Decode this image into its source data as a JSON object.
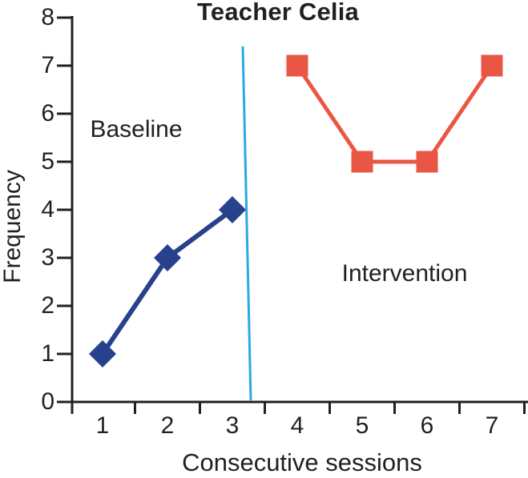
{
  "chart_data": {
    "type": "line",
    "title": "Teacher Celia",
    "xlabel": "Consecutive sessions",
    "ylabel": "Frequency",
    "x_ticks": [
      1,
      2,
      3,
      4,
      5,
      6,
      7
    ],
    "y_ticks": [
      0,
      1,
      2,
      3,
      4,
      5,
      6,
      7,
      8
    ],
    "ylim": [
      0,
      8
    ],
    "grid": "off",
    "legend": "none",
    "series": [
      {
        "name": "Baseline",
        "marker": "diamond",
        "color": "#27418C",
        "line_width": 6,
        "x": [
          1,
          2,
          3
        ],
        "values": [
          1,
          3,
          4
        ]
      },
      {
        "name": "Intervention",
        "marker": "square",
        "color": "#E95744",
        "line_width": 5,
        "x": [
          4,
          5,
          6,
          7
        ],
        "values": [
          7,
          5,
          5,
          7
        ]
      }
    ],
    "phase_line": {
      "color": "#29ABE2",
      "between_sessions": [
        3,
        4
      ]
    },
    "annotations": [
      {
        "text": "Baseline",
        "region": "sessions 1-3"
      },
      {
        "text": "Intervention",
        "region": "sessions 4-7"
      }
    ],
    "colors": {
      "axis": "#231F20",
      "text": "#231F20",
      "background": "#FFFFFF"
    }
  }
}
